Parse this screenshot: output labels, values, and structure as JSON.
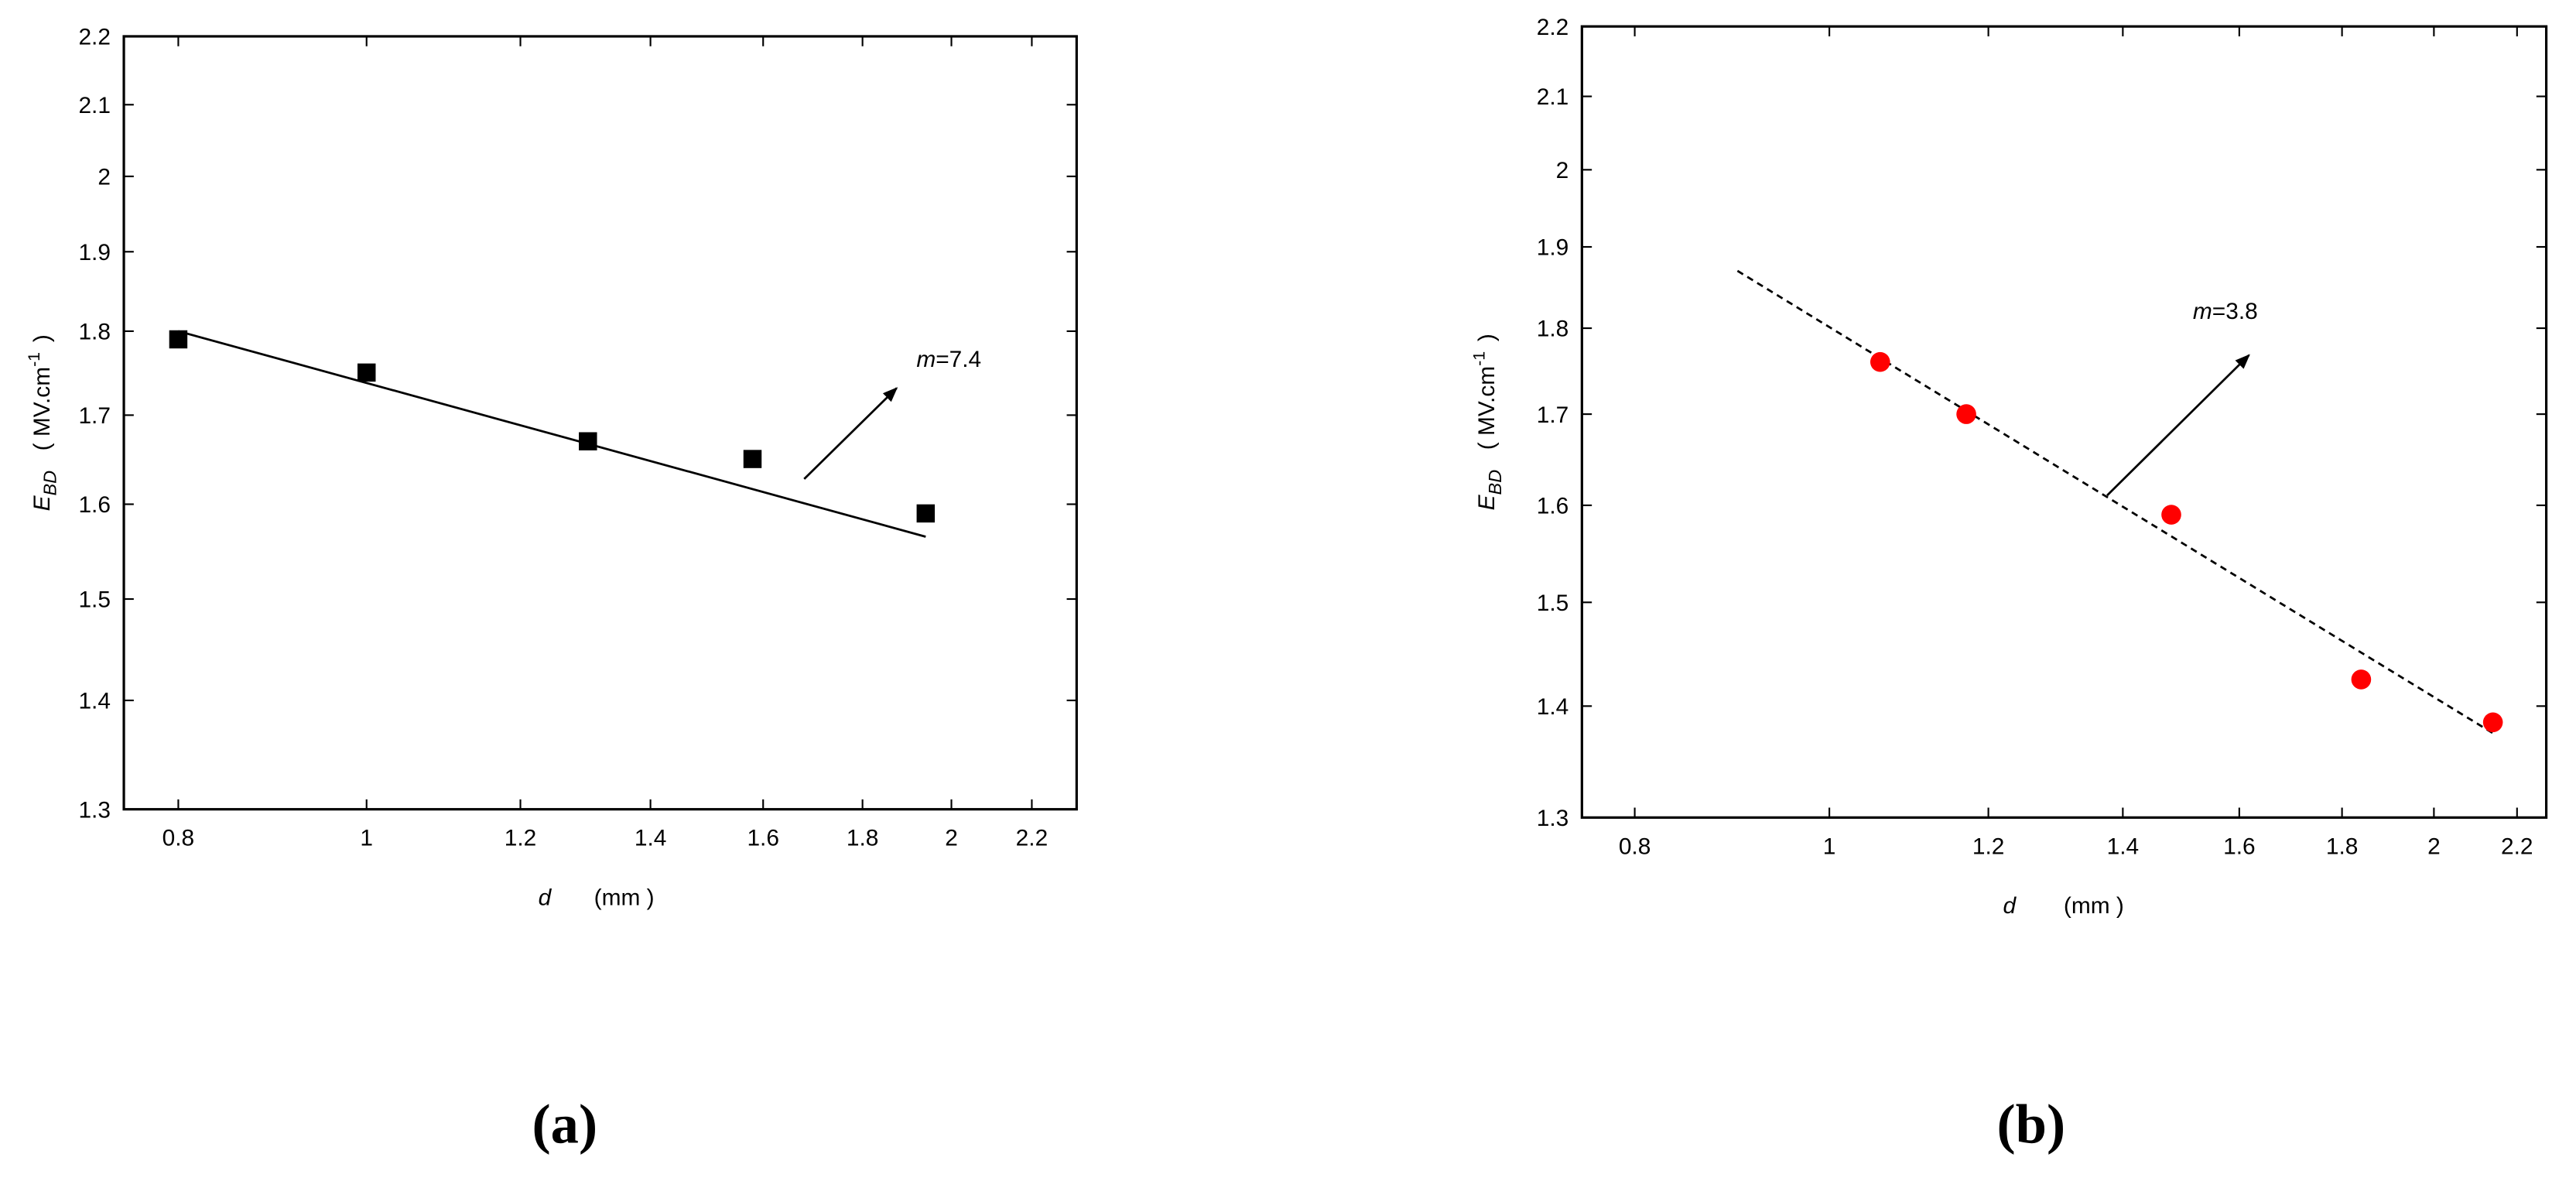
{
  "chart_data": [
    {
      "type": "scatter",
      "log_x": true,
      "log_y": true,
      "x": [
        0.8,
        1.0,
        1.3,
        1.58,
        1.94
      ],
      "y": [
        1.79,
        1.75,
        1.67,
        1.65,
        1.59
      ],
      "marker": "square",
      "color": "#000000",
      "fit": {
        "x": [
          0.8,
          1.94
        ],
        "y": [
          1.8,
          1.565
        ],
        "style": "solid"
      },
      "xlim": [
        0.75,
        2.32
      ],
      "ylim": [
        1.3,
        2.2
      ],
      "xticks": [
        0.8,
        1,
        1.2,
        1.4,
        1.6,
        1.8,
        2,
        2.2
      ],
      "yticks": [
        1.3,
        1.4,
        1.5,
        1.6,
        1.7,
        1.8,
        1.9,
        2,
        2.1,
        2.2
      ],
      "xlabel": {
        "symbol": "d",
        "unit": "(mm )"
      },
      "ylabel": {
        "symbol": "E",
        "subscript": "BD",
        "unit": "( MV.cm",
        "superscript": "-1",
        "close": ")"
      },
      "annotation": {
        "symbol": "m",
        "text": "=7.4"
      },
      "panel_label": "(a)"
    },
    {
      "type": "scatter",
      "log_x": true,
      "log_y": true,
      "x": [
        1.06,
        1.17,
        1.48,
        1.84,
        2.14
      ],
      "y": [
        1.76,
        1.7,
        1.59,
        1.425,
        1.385
      ],
      "marker": "circle",
      "color": "#ff0000",
      "fit": {
        "x": [
          0.9,
          2.14
        ],
        "y": [
          1.87,
          1.375
        ],
        "style": "dashed"
      },
      "xlim": [
        0.753,
        2.275
      ],
      "ylim": [
        1.3,
        2.2
      ],
      "xticks": [
        0.8,
        1,
        1.2,
        1.4,
        1.6,
        1.8,
        2,
        2.2
      ],
      "yticks": [
        1.3,
        1.4,
        1.5,
        1.6,
        1.7,
        1.8,
        1.9,
        2,
        2.1,
        2.2
      ],
      "xlabel": {
        "symbol": "d",
        "unit": "(mm )"
      },
      "ylabel": {
        "symbol": "E",
        "subscript": "BD",
        "unit": "( MV.cm",
        "superscript": "-1",
        "close": ")"
      },
      "annotation": {
        "symbol": "m",
        "text": "=3.8"
      },
      "panel_label": "(b)"
    }
  ]
}
